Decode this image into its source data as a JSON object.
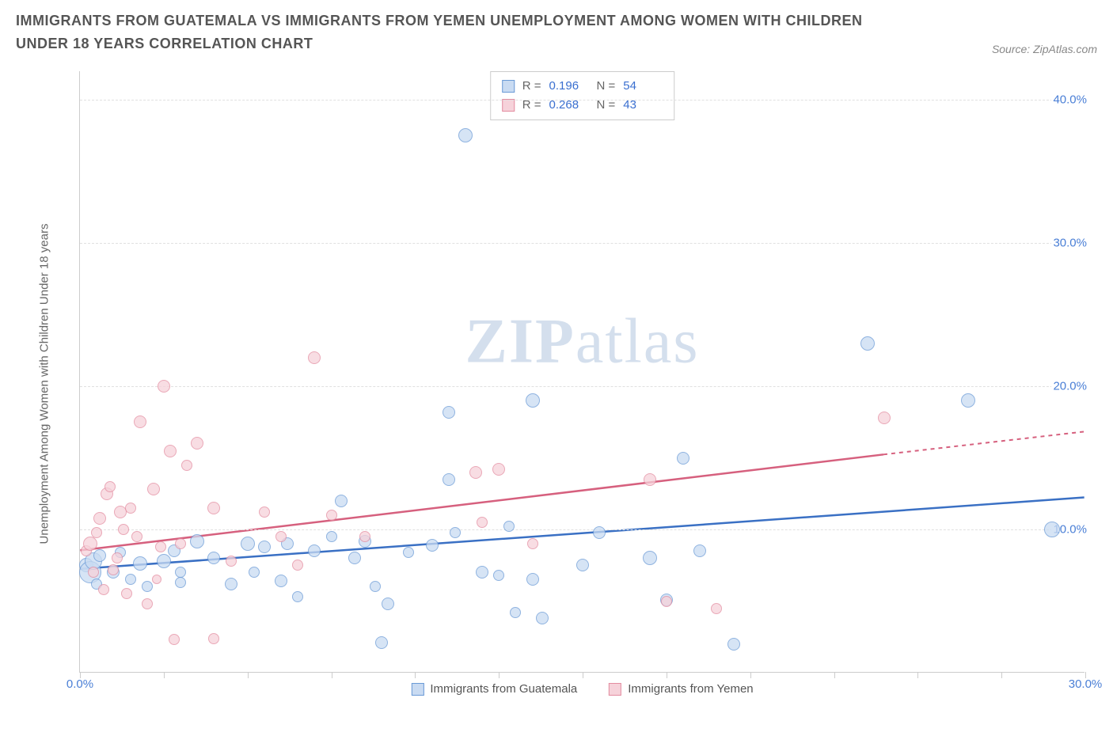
{
  "title": "IMMIGRANTS FROM GUATEMALA VS IMMIGRANTS FROM YEMEN UNEMPLOYMENT AMONG WOMEN WITH CHILDREN UNDER 18 YEARS CORRELATION CHART",
  "source": "Source: ZipAtlas.com",
  "watermark_bold": "ZIP",
  "watermark_light": "atlas",
  "chart": {
    "type": "scatter",
    "y_title": "Unemployment Among Women with Children Under 18 years",
    "xlim": [
      0,
      30
    ],
    "ylim": [
      0,
      42
    ],
    "x_ticks": [
      0,
      10,
      20,
      30
    ],
    "x_tick_labels": [
      "0.0%",
      "",
      "",
      "30.0%"
    ],
    "x_minor_ticks": [
      0,
      2.5,
      5,
      7.5,
      10,
      12.5,
      15,
      17.5,
      20,
      22.5,
      25,
      27.5,
      30
    ],
    "y_ticks": [
      10,
      20,
      30,
      40
    ],
    "y_tick_labels": [
      "10.0%",
      "20.0%",
      "30.0%",
      "40.0%"
    ],
    "grid_color": "#e0e0e0",
    "axis_color": "#cccccc",
    "background_color": "#ffffff",
    "tick_label_color": "#4a7fd6",
    "axis_title_color": "#666666",
    "series": [
      {
        "name": "Immigrants from Guatemala",
        "key": "guatemala",
        "fill": "#c9dbf2",
        "stroke": "#6a9ad6",
        "fill_opacity": 0.75,
        "trend": {
          "x1": 0,
          "y1": 7.2,
          "x2": 30,
          "y2": 12.2,
          "color": "#3a70c4",
          "dash_after_x": 30
        },
        "R": "0.196",
        "N": "54",
        "points": [
          {
            "x": 0.2,
            "y": 7.5,
            "r": 9
          },
          {
            "x": 0.3,
            "y": 7.0,
            "r": 14
          },
          {
            "x": 0.4,
            "y": 7.8,
            "r": 11
          },
          {
            "x": 0.5,
            "y": 6.2,
            "r": 7
          },
          {
            "x": 0.6,
            "y": 8.2,
            "r": 8
          },
          {
            "x": 1.0,
            "y": 7.0,
            "r": 8
          },
          {
            "x": 1.2,
            "y": 8.4,
            "r": 7
          },
          {
            "x": 1.5,
            "y": 6.5,
            "r": 7
          },
          {
            "x": 1.8,
            "y": 7.6,
            "r": 9
          },
          {
            "x": 2.5,
            "y": 7.8,
            "r": 9
          },
          {
            "x": 2.0,
            "y": 6.0,
            "r": 7
          },
          {
            "x": 2.8,
            "y": 8.5,
            "r": 8
          },
          {
            "x": 3.0,
            "y": 6.3,
            "r": 7
          },
          {
            "x": 3.5,
            "y": 9.2,
            "r": 9
          },
          {
            "x": 3.0,
            "y": 7.0,
            "r": 7
          },
          {
            "x": 4.0,
            "y": 8.0,
            "r": 8
          },
          {
            "x": 4.5,
            "y": 6.2,
            "r": 8
          },
          {
            "x": 5.0,
            "y": 9.0,
            "r": 9
          },
          {
            "x": 5.2,
            "y": 7.0,
            "r": 7
          },
          {
            "x": 5.5,
            "y": 8.8,
            "r": 8
          },
          {
            "x": 6.0,
            "y": 6.4,
            "r": 8
          },
          {
            "x": 6.2,
            "y": 9.0,
            "r": 8
          },
          {
            "x": 6.5,
            "y": 5.3,
            "r": 7
          },
          {
            "x": 7.0,
            "y": 8.5,
            "r": 8
          },
          {
            "x": 7.5,
            "y": 9.5,
            "r": 7
          },
          {
            "x": 7.8,
            "y": 12.0,
            "r": 8
          },
          {
            "x": 8.2,
            "y": 8.0,
            "r": 8
          },
          {
            "x": 8.5,
            "y": 9.2,
            "r": 8
          },
          {
            "x": 8.8,
            "y": 6.0,
            "r": 7
          },
          {
            "x": 9.2,
            "y": 4.8,
            "r": 8
          },
          {
            "x": 9.0,
            "y": 2.1,
            "r": 8
          },
          {
            "x": 9.8,
            "y": 8.4,
            "r": 7
          },
          {
            "x": 10.5,
            "y": 8.9,
            "r": 8
          },
          {
            "x": 11.0,
            "y": 13.5,
            "r": 8
          },
          {
            "x": 11.5,
            "y": 37.5,
            "r": 9
          },
          {
            "x": 11.2,
            "y": 9.8,
            "r": 7
          },
          {
            "x": 11.0,
            "y": 18.2,
            "r": 8
          },
          {
            "x": 12.0,
            "y": 7.0,
            "r": 8
          },
          {
            "x": 12.5,
            "y": 6.8,
            "r": 7
          },
          {
            "x": 12.8,
            "y": 10.2,
            "r": 7
          },
          {
            "x": 13.5,
            "y": 6.5,
            "r": 8
          },
          {
            "x": 13.0,
            "y": 4.2,
            "r": 7
          },
          {
            "x": 13.8,
            "y": 3.8,
            "r": 8
          },
          {
            "x": 13.5,
            "y": 19.0,
            "r": 9
          },
          {
            "x": 15.0,
            "y": 7.5,
            "r": 8
          },
          {
            "x": 15.5,
            "y": 9.8,
            "r": 8
          },
          {
            "x": 17.0,
            "y": 8.0,
            "r": 9
          },
          {
            "x": 17.5,
            "y": 5.1,
            "r": 8
          },
          {
            "x": 18.0,
            "y": 15.0,
            "r": 8
          },
          {
            "x": 18.5,
            "y": 8.5,
            "r": 8
          },
          {
            "x": 19.5,
            "y": 2.0,
            "r": 8
          },
          {
            "x": 23.5,
            "y": 23.0,
            "r": 9
          },
          {
            "x": 26.5,
            "y": 19.0,
            "r": 9
          },
          {
            "x": 29.0,
            "y": 10.0,
            "r": 10
          }
        ]
      },
      {
        "name": "Immigrants from Yemen",
        "key": "yemen",
        "fill": "#f6d2da",
        "stroke": "#e38ca0",
        "fill_opacity": 0.75,
        "trend": {
          "x1": 0,
          "y1": 8.5,
          "x2": 24,
          "y2": 15.2,
          "dash_to_x": 30,
          "dash_to_y": 16.8,
          "color": "#d6607e"
        },
        "R": "0.268",
        "N": "43",
        "points": [
          {
            "x": 0.2,
            "y": 8.5,
            "r": 7
          },
          {
            "x": 0.3,
            "y": 9.0,
            "r": 9
          },
          {
            "x": 0.4,
            "y": 7.0,
            "r": 7
          },
          {
            "x": 0.5,
            "y": 9.8,
            "r": 7
          },
          {
            "x": 0.6,
            "y": 10.8,
            "r": 8
          },
          {
            "x": 0.7,
            "y": 5.8,
            "r": 7
          },
          {
            "x": 0.8,
            "y": 12.5,
            "r": 8
          },
          {
            "x": 0.9,
            "y": 13.0,
            "r": 7
          },
          {
            "x": 1.0,
            "y": 7.2,
            "r": 7
          },
          {
            "x": 1.2,
            "y": 11.2,
            "r": 8
          },
          {
            "x": 1.1,
            "y": 8.0,
            "r": 7
          },
          {
            "x": 1.3,
            "y": 10.0,
            "r": 7
          },
          {
            "x": 1.5,
            "y": 11.5,
            "r": 7
          },
          {
            "x": 1.4,
            "y": 5.5,
            "r": 7
          },
          {
            "x": 1.7,
            "y": 9.5,
            "r": 7
          },
          {
            "x": 1.8,
            "y": 17.5,
            "r": 8
          },
          {
            "x": 2.0,
            "y": 4.8,
            "r": 7
          },
          {
            "x": 2.2,
            "y": 12.8,
            "r": 8
          },
          {
            "x": 2.3,
            "y": 6.5,
            "r": 6
          },
          {
            "x": 2.5,
            "y": 20.0,
            "r": 8
          },
          {
            "x": 2.4,
            "y": 8.8,
            "r": 7
          },
          {
            "x": 2.7,
            "y": 15.5,
            "r": 8
          },
          {
            "x": 2.8,
            "y": 2.3,
            "r": 7
          },
          {
            "x": 3.0,
            "y": 9.0,
            "r": 7
          },
          {
            "x": 3.2,
            "y": 14.5,
            "r": 7
          },
          {
            "x": 3.5,
            "y": 16.0,
            "r": 8
          },
          {
            "x": 4.0,
            "y": 11.5,
            "r": 8
          },
          {
            "x": 4.5,
            "y": 7.8,
            "r": 7
          },
          {
            "x": 4.0,
            "y": 2.4,
            "r": 7
          },
          {
            "x": 5.5,
            "y": 11.2,
            "r": 7
          },
          {
            "x": 6.0,
            "y": 9.5,
            "r": 7
          },
          {
            "x": 6.5,
            "y": 7.5,
            "r": 7
          },
          {
            "x": 7.0,
            "y": 22.0,
            "r": 8
          },
          {
            "x": 7.5,
            "y": 11.0,
            "r": 7
          },
          {
            "x": 8.5,
            "y": 9.5,
            "r": 7
          },
          {
            "x": 11.8,
            "y": 14.0,
            "r": 8
          },
          {
            "x": 12.5,
            "y": 14.2,
            "r": 8
          },
          {
            "x": 12.0,
            "y": 10.5,
            "r": 7
          },
          {
            "x": 13.5,
            "y": 9.0,
            "r": 7
          },
          {
            "x": 17.0,
            "y": 13.5,
            "r": 8
          },
          {
            "x": 17.5,
            "y": 5.0,
            "r": 7
          },
          {
            "x": 19.0,
            "y": 4.5,
            "r": 7
          },
          {
            "x": 24.0,
            "y": 17.8,
            "r": 8
          }
        ]
      }
    ],
    "legend_bottom": [
      {
        "label": "Immigrants from Guatemala",
        "fill": "#c9dbf2",
        "stroke": "#6a9ad6"
      },
      {
        "label": "Immigrants from Yemen",
        "fill": "#f6d2da",
        "stroke": "#e38ca0"
      }
    ]
  }
}
